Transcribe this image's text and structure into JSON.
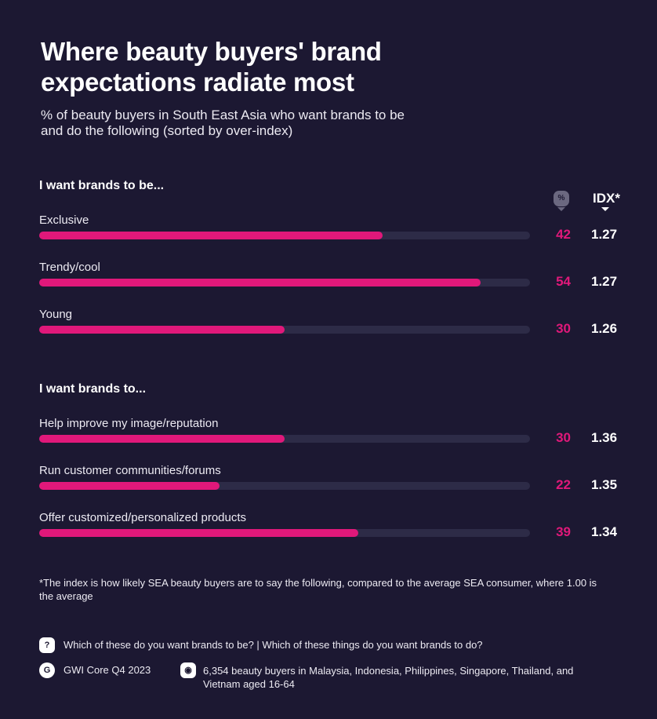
{
  "title": "Where beauty buyers' brand expectations radiate most",
  "subtitle": "% of beauty buyers in South East Asia who want brands to be and do the following (sorted by over-index)",
  "colors": {
    "background": "#1c1832",
    "bar": "#e0187a",
    "track": "#2d2b47"
  },
  "headers": {
    "pct_icon": "%",
    "idx": "IDX*"
  },
  "chart_data": {
    "type": "bar",
    "orientation": "horizontal",
    "xlim": [
      0,
      60
    ],
    "groups": [
      {
        "title": "I want brands to be...",
        "items": [
          {
            "label": "Exclusive",
            "value": 42,
            "index": "1.27"
          },
          {
            "label": "Trendy/cool",
            "value": 54,
            "index": "1.27"
          },
          {
            "label": "Young",
            "value": 30,
            "index": "1.26"
          }
        ]
      },
      {
        "title": "I want brands to...",
        "items": [
          {
            "label": "Help improve my image/reputation",
            "value": 30,
            "index": "1.36"
          },
          {
            "label": "Run customer communities/forums",
            "value": 22,
            "index": "1.35"
          },
          {
            "label": "Offer customized/personalized products",
            "value": 39,
            "index": "1.34"
          }
        ]
      }
    ]
  },
  "footnote": "*The index is how likely SEA beauty buyers are to say the following, compared to the average SEA consumer, where 1.00 is the average",
  "question": "Which of these do you want brands to be? | Which of these things do you want brands to do?",
  "source": "GWI Core Q4 2023",
  "sample": "6,354 beauty buyers in Malaysia, Indonesia, Philippines, Singapore, Thailand, and Vietnam aged 16-64",
  "icons": {
    "question": "?"
  }
}
